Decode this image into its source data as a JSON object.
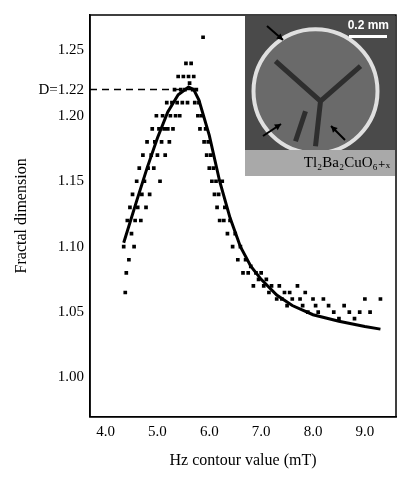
{
  "chart_data": {
    "type": "scatter",
    "x_label": "Hz contour value (mT)",
    "y_label": "Fractal dimension",
    "xlim": [
      3.7,
      9.6
    ],
    "ylim": [
      0.97,
      1.277
    ],
    "xticks": [
      {
        "value": 4,
        "label": "4.0"
      },
      {
        "value": 5,
        "label": "5.0"
      },
      {
        "value": 6,
        "label": "6.0"
      },
      {
        "value": 7,
        "label": "7.0"
      },
      {
        "value": 8,
        "label": "8.0"
      },
      {
        "value": 9,
        "label": "9.0"
      }
    ],
    "yticks": [
      {
        "value": 1,
        "label": "1.00"
      },
      {
        "value": 1.05,
        "label": "1.05"
      },
      {
        "value": 1.1,
        "label": "1.10"
      },
      {
        "value": 1.15,
        "label": "1.15"
      },
      {
        "value": 1.2,
        "label": "1.20"
      },
      {
        "value": 1.25,
        "label": "1.25"
      }
    ],
    "grid": false,
    "series": [
      {
        "type": "scatter",
        "marker": "square",
        "color": "#000000",
        "x": [
          4.35,
          4.38,
          4.4,
          4.42,
          4.45,
          4.47,
          4.5,
          4.52,
          4.55,
          4.57,
          4.6,
          4.62,
          4.65,
          4.68,
          4.7,
          4.72,
          4.75,
          4.78,
          4.8,
          4.82,
          4.85,
          4.88,
          4.9,
          4.93,
          4.95,
          4.98,
          5.0,
          5.03,
          5.05,
          5.08,
          5.1,
          5.13,
          5.15,
          5.18,
          5.2,
          5.23,
          5.25,
          5.28,
          5.3,
          5.33,
          5.35,
          5.38,
          5.4,
          5.43,
          5.45,
          5.48,
          5.5,
          5.53,
          5.55,
          5.58,
          5.6,
          5.62,
          5.65,
          5.68,
          5.7,
          5.72,
          5.75,
          5.78,
          5.8,
          5.82,
          5.85,
          5.88,
          5.9,
          5.93,
          5.95,
          5.98,
          6.0,
          6.03,
          6.05,
          6.08,
          6.1,
          6.13,
          6.15,
          6.18,
          6.2,
          6.25,
          6.28,
          6.3,
          6.35,
          6.4,
          6.45,
          6.5,
          6.55,
          6.6,
          6.65,
          6.7,
          6.75,
          6.8,
          6.85,
          6.9,
          6.95,
          7.0,
          7.05,
          7.1,
          7.15,
          7.2,
          7.3,
          7.35,
          7.4,
          7.45,
          7.5,
          7.55,
          7.6,
          7.7,
          7.75,
          7.8,
          7.85,
          7.9,
          8.0,
          8.05,
          8.1,
          8.2,
          8.3,
          8.4,
          8.5,
          8.6,
          8.7,
          8.8,
          8.9,
          9.0,
          9.1,
          9.3
        ],
        "values": [
          1.1,
          1.065,
          1.08,
          1.12,
          1.09,
          1.13,
          1.11,
          1.14,
          1.1,
          1.12,
          1.15,
          1.13,
          1.16,
          1.12,
          1.14,
          1.17,
          1.15,
          1.13,
          1.18,
          1.16,
          1.14,
          1.17,
          1.19,
          1.16,
          1.18,
          1.2,
          1.17,
          1.19,
          1.15,
          1.18,
          1.2,
          1.19,
          1.17,
          1.21,
          1.19,
          1.18,
          1.2,
          1.21,
          1.19,
          1.22,
          1.2,
          1.21,
          1.23,
          1.2,
          1.22,
          1.21,
          1.23,
          1.22,
          1.24,
          1.21,
          1.23,
          1.225,
          1.24,
          1.22,
          1.23,
          1.21,
          1.22,
          1.2,
          1.21,
          1.19,
          1.2,
          1.26,
          1.18,
          1.19,
          1.17,
          1.18,
          1.16,
          1.17,
          1.15,
          1.16,
          1.14,
          1.15,
          1.13,
          1.14,
          1.12,
          1.15,
          1.12,
          1.13,
          1.11,
          1.12,
          1.1,
          1.11,
          1.09,
          1.1,
          1.08,
          1.09,
          1.08,
          1.085,
          1.07,
          1.08,
          1.075,
          1.08,
          1.07,
          1.075,
          1.065,
          1.07,
          1.06,
          1.07,
          1.06,
          1.065,
          1.055,
          1.065,
          1.06,
          1.07,
          1.06,
          1.055,
          1.065,
          1.05,
          1.06,
          1.055,
          1.05,
          1.06,
          1.055,
          1.05,
          1.045,
          1.055,
          1.05,
          1.045,
          1.05,
          1.06,
          1.05,
          1.06
        ]
      },
      {
        "type": "line",
        "line_style": "solid",
        "color": "#000000",
        "x": [
          4.35,
          4.6,
          4.8,
          5.0,
          5.2,
          5.4,
          5.6,
          5.7,
          5.8,
          6.0,
          6.2,
          6.4,
          6.6,
          6.8,
          7.0,
          7.3,
          7.6,
          8.0,
          8.5,
          9.0,
          9.3
        ],
        "values": [
          1.103,
          1.135,
          1.16,
          1.183,
          1.203,
          1.216,
          1.222,
          1.22,
          1.212,
          1.185,
          1.15,
          1.122,
          1.1,
          1.085,
          1.075,
          1.063,
          1.055,
          1.048,
          1.043,
          1.039,
          1.037
        ]
      }
    ],
    "annotations": [
      {
        "text": "D=1.22",
        "x": 5.65,
        "y": 1.22,
        "line_style": "dashed"
      }
    ],
    "inset": {
      "scale_bar": "0.2 mm",
      "label": "Tl₂Ba₂CuO₆₊ₓ"
    }
  }
}
